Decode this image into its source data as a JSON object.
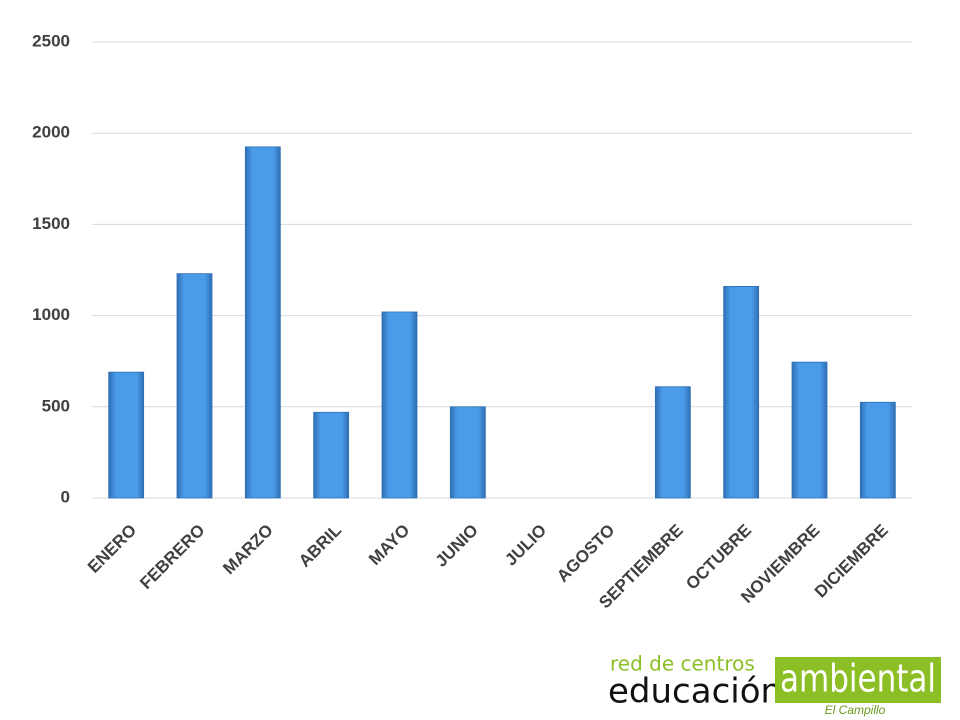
{
  "chart_data": {
    "type": "bar",
    "categories": [
      "ENERO",
      "FEBRERO",
      "MARZO",
      "ABRIL",
      "MAYO",
      "JUNIO",
      "JULIO",
      "AGOSTO",
      "SEPTIEMBRE",
      "OCTUBRE",
      "NOVIEMBRE",
      "DICIEMBRE"
    ],
    "values": [
      690,
      1230,
      1925,
      470,
      1020,
      500,
      0,
      0,
      610,
      1160,
      745,
      525
    ],
    "color": "#4a9be8",
    "ylim": [
      0,
      2500
    ],
    "yticks": [
      0,
      500,
      1000,
      1500,
      2000,
      2500
    ],
    "grid": true
  },
  "logo": {
    "line1": "red de centros",
    "line2": "educación",
    "badge": "ambiental",
    "place": "El Campillo"
  }
}
